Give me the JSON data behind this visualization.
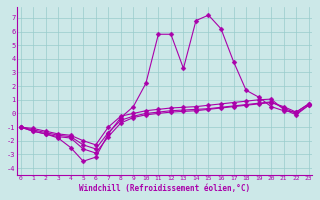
{
  "xlabel": "Windchill (Refroidissement éolien,°C)",
  "background_color": "#cce8e8",
  "grid_color": "#99cccc",
  "line_color": "#aa00aa",
  "x": [
    0,
    1,
    2,
    3,
    4,
    5,
    6,
    7,
    8,
    9,
    10,
    11,
    12,
    13,
    14,
    15,
    16,
    17,
    18,
    19,
    20,
    21,
    22,
    23
  ],
  "line1": [
    -1.0,
    -1.3,
    -1.5,
    -1.8,
    -2.5,
    -3.5,
    -3.2,
    -1.5,
    -0.3,
    0.5,
    2.2,
    5.8,
    5.8,
    3.3,
    6.8,
    7.2,
    6.2,
    3.8,
    1.7,
    1.2,
    0.5,
    0.2,
    0.1,
    0.7
  ],
  "line2": [
    -1.0,
    -1.3,
    -1.5,
    -1.7,
    -1.8,
    -2.6,
    -2.9,
    -1.7,
    -0.7,
    -0.3,
    -0.1,
    0.0,
    0.1,
    0.15,
    0.2,
    0.3,
    0.4,
    0.5,
    0.6,
    0.7,
    0.8,
    0.5,
    0.1,
    0.7
  ],
  "line3": [
    -1.0,
    -1.2,
    -1.4,
    -1.6,
    -1.7,
    -2.3,
    -2.6,
    -1.4,
    -0.5,
    -0.2,
    0.0,
    0.1,
    0.2,
    0.25,
    0.3,
    0.35,
    0.45,
    0.55,
    0.65,
    0.75,
    0.85,
    0.4,
    0.0,
    0.6
  ],
  "line4": [
    -1.0,
    -1.1,
    -1.3,
    -1.5,
    -1.6,
    -2.0,
    -2.3,
    -1.0,
    -0.2,
    0.0,
    0.2,
    0.3,
    0.4,
    0.45,
    0.5,
    0.6,
    0.7,
    0.8,
    0.9,
    1.0,
    1.05,
    0.3,
    -0.1,
    0.6
  ],
  "ylim": [
    -4.5,
    7.8
  ],
  "xlim": [
    -0.3,
    23.3
  ],
  "yticks": [
    -4,
    -3,
    -2,
    -1,
    0,
    1,
    2,
    3,
    4,
    5,
    6,
    7
  ]
}
